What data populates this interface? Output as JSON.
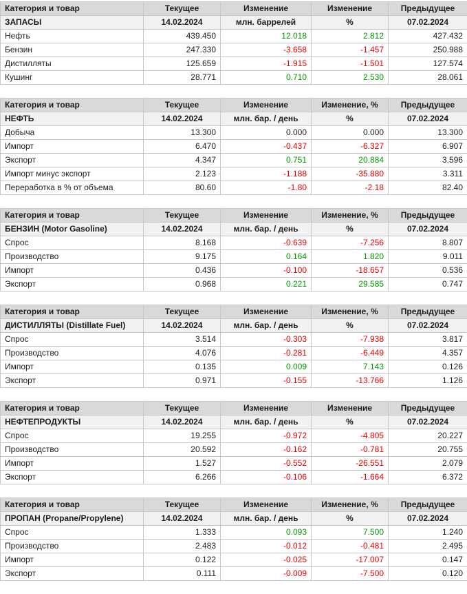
{
  "colors": {
    "positive": "#009900",
    "negative": "#e60000",
    "neutral": "#1c1c1c",
    "header_bg": "#d9d9d9",
    "subheader_bg": "#f1f1f1",
    "border": "#c6c6c6"
  },
  "chart_data": [
    {
      "type": "table",
      "id": "inventories",
      "headers": [
        "Категория и товар",
        "Текущее",
        "Изменение",
        "Изменение",
        "Предыдущее"
      ],
      "subheader": {
        "section": "ЗАПАСЫ",
        "current_date": "14.02.2024",
        "unit": "млн. баррелей",
        "pct_symbol": "%",
        "prev_date": "07.02.2024"
      },
      "rows": [
        {
          "label": "Нефть",
          "current": "439.450",
          "change": "12.018",
          "change_pct": "2.812",
          "previous": "427.432",
          "trend": "up"
        },
        {
          "label": "Бензин",
          "current": "247.330",
          "change": "-3.658",
          "change_pct": "-1.457",
          "previous": "250.988",
          "trend": "down"
        },
        {
          "label": "Дистилляты",
          "current": "125.659",
          "change": "-1.915",
          "change_pct": "-1.501",
          "previous": "127.574",
          "trend": "down"
        },
        {
          "label": "Кушинг",
          "current": "28.771",
          "change": "0.710",
          "change_pct": "2.530",
          "previous": "28.061",
          "trend": "up"
        }
      ]
    },
    {
      "type": "table",
      "id": "crude-oil",
      "headers": [
        "Категория и товар",
        "Текущее",
        "Изменение",
        "Изменение, %",
        "Предыдущее"
      ],
      "subheader": {
        "section": "НЕФТЬ",
        "current_date": "14.02.2024",
        "unit": "млн. бар. / день",
        "pct_symbol": "%",
        "prev_date": "07.02.2024"
      },
      "rows": [
        {
          "label": "Добыча",
          "current": "13.300",
          "change": "0.000",
          "change_pct": "0.000",
          "previous": "13.300",
          "trend": "flat"
        },
        {
          "label": "Импорт",
          "current": "6.470",
          "change": "-0.437",
          "change_pct": "-6.327",
          "previous": "6.907",
          "trend": "down"
        },
        {
          "label": "Экспорт",
          "current": "4.347",
          "change": "0.751",
          "change_pct": "20.884",
          "previous": "3.596",
          "trend": "up"
        },
        {
          "label": "Импорт минус экспорт",
          "current": "2.123",
          "change": "-1.188",
          "change_pct": "-35.880",
          "previous": "3.311",
          "trend": "down"
        },
        {
          "label": "Переработка в % от объема",
          "current": "80.60",
          "change": "-1.80",
          "change_pct": "-2.18",
          "previous": "82.40",
          "trend": "down"
        }
      ]
    },
    {
      "type": "table",
      "id": "gasoline",
      "headers": [
        "Категория и товар",
        "Текущее",
        "Изменение",
        "Изменение, %",
        "Предыдущее"
      ],
      "subheader": {
        "section": "БЕНЗИН (Motor Gasoline)",
        "current_date": "14.02.2024",
        "unit": "млн. бар. / день",
        "pct_symbol": "%",
        "prev_date": "07.02.2024"
      },
      "rows": [
        {
          "label": "Спрос",
          "current": "8.168",
          "change": "-0.639",
          "change_pct": "-7.256",
          "previous": "8.807",
          "trend": "down"
        },
        {
          "label": "Производство",
          "current": "9.175",
          "change": "0.164",
          "change_pct": "1.820",
          "previous": "9.011",
          "trend": "up"
        },
        {
          "label": "Импорт",
          "current": "0.436",
          "change": "-0.100",
          "change_pct": "-18.657",
          "previous": "0.536",
          "trend": "down"
        },
        {
          "label": "Экспорт",
          "current": "0.968",
          "change": "0.221",
          "change_pct": "29.585",
          "previous": "0.747",
          "trend": "up"
        }
      ]
    },
    {
      "type": "table",
      "id": "distillates",
      "headers": [
        "Категория и товар",
        "Текущее",
        "Изменение",
        "Изменение, %",
        "Предыдущее"
      ],
      "subheader": {
        "section": "ДИСТИЛЛЯТЫ (Distillate Fuel)",
        "current_date": "14.02.2024",
        "unit": "млн. бар. / день",
        "pct_symbol": "%",
        "prev_date": "07.02.2024"
      },
      "rows": [
        {
          "label": "Спрос",
          "current": "3.514",
          "change": "-0.303",
          "change_pct": "-7.938",
          "previous": "3.817",
          "trend": "down"
        },
        {
          "label": "Производство",
          "current": "4.076",
          "change": "-0.281",
          "change_pct": "-6.449",
          "previous": "4.357",
          "trend": "down"
        },
        {
          "label": "Импорт",
          "current": "0.135",
          "change": "0.009",
          "change_pct": "7.143",
          "previous": "0.126",
          "trend": "up"
        },
        {
          "label": "Экспорт",
          "current": "0.971",
          "change": "-0.155",
          "change_pct": "-13.766",
          "previous": "1.126",
          "trend": "down"
        }
      ]
    },
    {
      "type": "table",
      "id": "petroleum-products",
      "headers": [
        "Категория и товар",
        "Текущее",
        "Изменение",
        "Изменение",
        "Предыдущее"
      ],
      "subheader": {
        "section": "НЕФТЕПРОДУКТЫ",
        "current_date": "14.02.2024",
        "unit": "млн. бар. / день",
        "pct_symbol": "%",
        "prev_date": "07.02.2024"
      },
      "rows": [
        {
          "label": "Спрос",
          "current": "19.255",
          "change": "-0.972",
          "change_pct": "-4.805",
          "previous": "20.227",
          "trend": "down"
        },
        {
          "label": "Производство",
          "current": "20.592",
          "change": "-0.162",
          "change_pct": "-0.781",
          "previous": "20.755",
          "trend": "down"
        },
        {
          "label": "Импорт",
          "current": "1.527",
          "change": "-0.552",
          "change_pct": "-26.551",
          "previous": "2.079",
          "trend": "down"
        },
        {
          "label": "Экспорт",
          "current": "6.266",
          "change": "-0.106",
          "change_pct": "-1.664",
          "previous": "6.372",
          "trend": "down"
        }
      ]
    },
    {
      "type": "table",
      "id": "propane",
      "headers": [
        "Категория и товар",
        "Текущее",
        "Изменение",
        "Изменение, %",
        "Предыдущее"
      ],
      "subheader": {
        "section": "ПРОПАН (Propane/Propylene)",
        "current_date": "14.02.2024",
        "unit": "млн. бар. / день",
        "pct_symbol": "%",
        "prev_date": "07.02.2024"
      },
      "rows": [
        {
          "label": "Спрос",
          "current": "1.333",
          "change": "0.093",
          "change_pct": "7.500",
          "previous": "1.240",
          "trend": "up"
        },
        {
          "label": "Производство",
          "current": "2.483",
          "change": "-0.012",
          "change_pct": "-0.481",
          "previous": "2.495",
          "trend": "down"
        },
        {
          "label": "Импорт",
          "current": "0.122",
          "change": "-0.025",
          "change_pct": "-17.007",
          "previous": "0.147",
          "trend": "down"
        },
        {
          "label": "Экспорт",
          "current": "0.111",
          "change": "-0.009",
          "change_pct": "-7.500",
          "previous": "0.120",
          "trend": "down"
        }
      ]
    }
  ]
}
